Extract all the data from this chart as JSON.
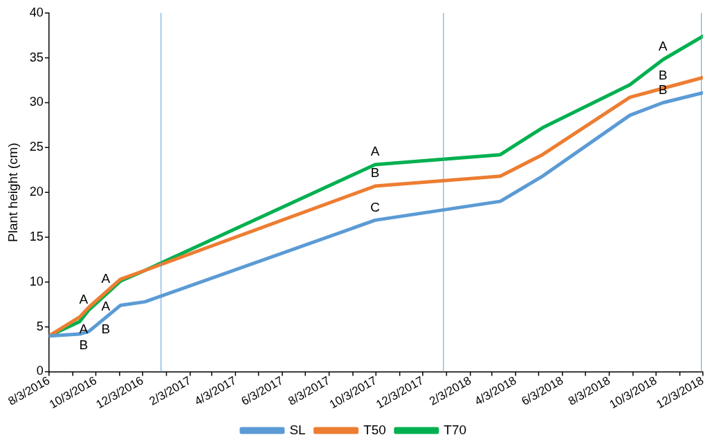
{
  "chart_data": {
    "type": "line",
    "ylabel": "Plant height (cm)",
    "x": [
      "2016-08-03",
      "2016-09-12",
      "2016-09-24",
      "2016-11-04",
      "2016-12-06",
      "2017-10-02",
      "2018-03-14",
      "2018-05-08",
      "2018-08-30",
      "2018-10-12",
      "2018-12-03"
    ],
    "series": [
      {
        "name": "SL",
        "color": "#5b9bd5",
        "values": [
          4,
          4.2,
          4.5,
          7.4,
          7.8,
          16.9,
          19.0,
          21.8,
          28.6,
          30.0,
          31.1
        ]
      },
      {
        "name": "T50",
        "color": "#ed7d31",
        "values": [
          4,
          6.1,
          7.2,
          10.3,
          11.3,
          20.7,
          21.8,
          24.2,
          30.6,
          31.6,
          32.8
        ]
      },
      {
        "name": "T70",
        "color": "#00b050",
        "values": [
          4,
          5.6,
          6.9,
          10.1,
          11.3,
          23.1,
          24.2,
          27.2,
          32.0,
          34.8,
          37.4
        ]
      }
    ],
    "xlim": [
      "2016-08-03",
      "2018-12-03"
    ],
    "xticks": [
      {
        "value": "2016-08-03",
        "label": "8/3/2016"
      },
      {
        "value": "2016-09-03",
        "label": null
      },
      {
        "value": "2016-10-03",
        "label": "10/3/2016"
      },
      {
        "value": "2016-11-03",
        "label": null
      },
      {
        "value": "2016-12-03",
        "label": "12/3/2016"
      },
      {
        "value": "2017-01-03",
        "label": null
      },
      {
        "value": "2017-02-03",
        "label": "2/3/2017"
      },
      {
        "value": "2017-03-03",
        "label": null
      },
      {
        "value": "2017-04-03",
        "label": "4/3/2017"
      },
      {
        "value": "2017-05-03",
        "label": null
      },
      {
        "value": "2017-06-03",
        "label": "6/3/2017"
      },
      {
        "value": "2017-07-03",
        "label": null
      },
      {
        "value": "2017-08-03",
        "label": "8/3/2017"
      },
      {
        "value": "2017-09-03",
        "label": null
      },
      {
        "value": "2017-10-03",
        "label": "10/3/2017"
      },
      {
        "value": "2017-11-03",
        "label": null
      },
      {
        "value": "2017-12-03",
        "label": "12/3/2017"
      },
      {
        "value": "2018-01-03",
        "label": null
      },
      {
        "value": "2018-02-03",
        "label": "2/3/2018"
      },
      {
        "value": "2018-03-03",
        "label": null
      },
      {
        "value": "2018-04-03",
        "label": "4/3/2018"
      },
      {
        "value": "2018-05-03",
        "label": null
      },
      {
        "value": "2018-06-03",
        "label": "6/3/2018"
      },
      {
        "value": "2018-07-03",
        "label": null
      },
      {
        "value": "2018-08-03",
        "label": "8/3/2018"
      },
      {
        "value": "2018-09-03",
        "label": null
      },
      {
        "value": "2018-10-03",
        "label": "10/3/2018"
      },
      {
        "value": "2018-11-03",
        "label": null
      },
      {
        "value": "2018-12-03",
        "label": "12/3/2018"
      }
    ],
    "ylim": [
      0,
      40
    ],
    "yticks": [
      0,
      5,
      10,
      15,
      20,
      25,
      30,
      35,
      40
    ],
    "ref_lines": [
      {
        "axis": "x",
        "value": "2016-12-27",
        "color": "#5b9bd5"
      },
      {
        "axis": "x",
        "value": "2017-12-30",
        "color": "#5b9bd5"
      },
      {
        "axis": "x",
        "value": "2018-12-01",
        "color": "#5b9bd5"
      }
    ],
    "annotations": [
      {
        "text": "A",
        "x": "2016-09-17",
        "y": 6.6
      },
      {
        "text": "A",
        "x": "2016-09-17",
        "y": 6.1
      },
      {
        "text": "B",
        "x": "2016-09-17",
        "y": 4.3
      },
      {
        "text": "A",
        "x": "2016-10-16",
        "y": 8.9
      },
      {
        "text": "A",
        "x": "2016-10-16",
        "y": 8.6
      },
      {
        "text": "B",
        "x": "2016-10-16",
        "y": 6.1
      },
      {
        "text": "A",
        "x": "2017-10-02",
        "y": 23.1
      },
      {
        "text": "B",
        "x": "2017-10-02",
        "y": 20.7
      },
      {
        "text": "C",
        "x": "2017-10-02",
        "y": 16.9
      },
      {
        "text": "A",
        "x": "2018-10-12",
        "y": 34.8
      },
      {
        "text": "B",
        "x": "2018-10-12",
        "y": 31.6
      },
      {
        "text": "B",
        "x": "2018-10-12",
        "y": 30.0
      }
    ],
    "legend": "bottom",
    "grid": false,
    "marker": "none",
    "line_style": "solid"
  }
}
